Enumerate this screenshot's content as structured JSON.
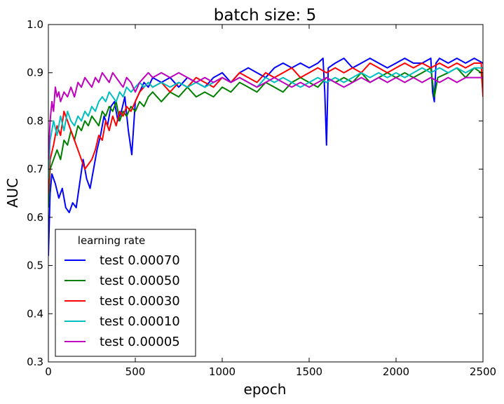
{
  "chart_data": {
    "type": "line",
    "title": "batch size: 5",
    "xlabel": "epoch",
    "ylabel": "AUC",
    "xlim": [
      0,
      2500
    ],
    "ylim": [
      0.3,
      1.0
    ],
    "xticks": [
      0,
      500,
      1000,
      1500,
      2000,
      2500
    ],
    "yticks": [
      0.3,
      0.4,
      0.5,
      0.6,
      0.7,
      0.8,
      0.9,
      1.0
    ],
    "xtick_labels": [
      "0",
      "500",
      "1000",
      "1500",
      "2000",
      "2500"
    ],
    "ytick_labels": [
      "0.3",
      "0.4",
      "0.5",
      "0.6",
      "0.7",
      "0.8",
      "0.9",
      "1.0"
    ],
    "grid": false,
    "legend": {
      "title": "learning rate",
      "position": "lower-left"
    },
    "series": [
      {
        "name": "test 0.00070",
        "color": "#0000ff",
        "x": [
          0,
          10,
          20,
          40,
          60,
          80,
          100,
          120,
          140,
          160,
          180,
          200,
          220,
          240,
          260,
          280,
          300,
          320,
          340,
          360,
          380,
          400,
          420,
          440,
          460,
          480,
          500,
          525,
          550,
          575,
          600,
          650,
          700,
          750,
          800,
          850,
          900,
          950,
          1000,
          1050,
          1100,
          1150,
          1200,
          1250,
          1300,
          1350,
          1400,
          1450,
          1500,
          1550,
          1580,
          1590,
          1600,
          1610,
          1650,
          1700,
          1750,
          1800,
          1850,
          1900,
          1950,
          2000,
          2050,
          2100,
          2150,
          2200,
          2210,
          2220,
          2230,
          2250,
          2300,
          2350,
          2400,
          2450,
          2500
        ],
        "y": [
          0.52,
          0.65,
          0.69,
          0.67,
          0.64,
          0.66,
          0.62,
          0.61,
          0.63,
          0.62,
          0.67,
          0.72,
          0.68,
          0.66,
          0.7,
          0.74,
          0.77,
          0.81,
          0.79,
          0.83,
          0.84,
          0.8,
          0.82,
          0.85,
          0.78,
          0.73,
          0.84,
          0.86,
          0.88,
          0.87,
          0.89,
          0.88,
          0.89,
          0.87,
          0.89,
          0.88,
          0.87,
          0.89,
          0.9,
          0.88,
          0.9,
          0.91,
          0.9,
          0.89,
          0.91,
          0.92,
          0.91,
          0.92,
          0.91,
          0.92,
          0.93,
          0.86,
          0.75,
          0.91,
          0.92,
          0.93,
          0.91,
          0.92,
          0.93,
          0.92,
          0.91,
          0.92,
          0.93,
          0.92,
          0.92,
          0.93,
          0.86,
          0.84,
          0.92,
          0.93,
          0.92,
          0.93,
          0.92,
          0.93,
          0.92
        ]
      },
      {
        "name": "test 0.00050",
        "color": "#008000",
        "x": [
          0,
          10,
          30,
          50,
          70,
          90,
          110,
          130,
          150,
          170,
          190,
          210,
          230,
          250,
          270,
          290,
          310,
          330,
          350,
          370,
          390,
          410,
          430,
          450,
          475,
          500,
          525,
          550,
          575,
          600,
          650,
          700,
          750,
          800,
          850,
          900,
          950,
          1000,
          1050,
          1100,
          1150,
          1200,
          1250,
          1300,
          1350,
          1400,
          1450,
          1500,
          1550,
          1600,
          1650,
          1700,
          1750,
          1800,
          1850,
          1900,
          1950,
          2000,
          2050,
          2100,
          2150,
          2200,
          2220,
          2240,
          2300,
          2350,
          2400,
          2450,
          2490,
          2500
        ],
        "y": [
          0.62,
          0.7,
          0.72,
          0.74,
          0.72,
          0.76,
          0.75,
          0.78,
          0.76,
          0.79,
          0.78,
          0.8,
          0.79,
          0.81,
          0.8,
          0.79,
          0.82,
          0.81,
          0.83,
          0.82,
          0.84,
          0.8,
          0.82,
          0.81,
          0.83,
          0.82,
          0.84,
          0.83,
          0.85,
          0.86,
          0.84,
          0.86,
          0.85,
          0.87,
          0.85,
          0.86,
          0.85,
          0.87,
          0.86,
          0.88,
          0.87,
          0.86,
          0.88,
          0.87,
          0.86,
          0.88,
          0.89,
          0.88,
          0.87,
          0.89,
          0.88,
          0.89,
          0.88,
          0.9,
          0.88,
          0.89,
          0.9,
          0.89,
          0.9,
          0.89,
          0.9,
          0.91,
          0.85,
          0.89,
          0.9,
          0.91,
          0.89,
          0.91,
          0.9,
          0.86
        ]
      },
      {
        "name": "test 0.00030",
        "color": "#ff0000",
        "x": [
          0,
          10,
          30,
          50,
          70,
          90,
          110,
          130,
          150,
          170,
          190,
          210,
          230,
          250,
          270,
          290,
          310,
          330,
          350,
          370,
          390,
          410,
          430,
          450,
          475,
          500,
          525,
          550,
          575,
          600,
          650,
          700,
          750,
          800,
          850,
          900,
          950,
          1000,
          1050,
          1100,
          1150,
          1200,
          1250,
          1300,
          1350,
          1400,
          1450,
          1500,
          1550,
          1600,
          1650,
          1700,
          1750,
          1800,
          1850,
          1900,
          1950,
          2000,
          2050,
          2100,
          2150,
          2200,
          2250,
          2300,
          2350,
          2400,
          2450,
          2490,
          2500
        ],
        "y": [
          0.65,
          0.72,
          0.75,
          0.79,
          0.77,
          0.82,
          0.8,
          0.78,
          0.76,
          0.74,
          0.72,
          0.7,
          0.71,
          0.72,
          0.74,
          0.77,
          0.76,
          0.8,
          0.78,
          0.81,
          0.79,
          0.82,
          0.81,
          0.83,
          0.82,
          0.84,
          0.86,
          0.87,
          0.88,
          0.87,
          0.88,
          0.86,
          0.88,
          0.87,
          0.89,
          0.88,
          0.87,
          0.89,
          0.88,
          0.9,
          0.89,
          0.88,
          0.9,
          0.89,
          0.9,
          0.91,
          0.89,
          0.9,
          0.91,
          0.9,
          0.91,
          0.9,
          0.91,
          0.9,
          0.92,
          0.91,
          0.9,
          0.91,
          0.92,
          0.91,
          0.92,
          0.91,
          0.92,
          0.91,
          0.92,
          0.91,
          0.92,
          0.92,
          0.85
        ]
      },
      {
        "name": "test 0.00010",
        "color": "#00bfbf",
        "x": [
          0,
          10,
          30,
          50,
          70,
          90,
          110,
          130,
          150,
          170,
          190,
          210,
          230,
          250,
          270,
          290,
          310,
          330,
          350,
          370,
          390,
          410,
          430,
          450,
          475,
          500,
          525,
          550,
          575,
          600,
          650,
          700,
          750,
          800,
          850,
          900,
          950,
          1000,
          1050,
          1100,
          1150,
          1200,
          1250,
          1300,
          1350,
          1400,
          1450,
          1500,
          1550,
          1600,
          1650,
          1700,
          1750,
          1800,
          1850,
          1900,
          1950,
          2000,
          2050,
          2100,
          2150,
          2200,
          2250,
          2300,
          2350,
          2400,
          2450,
          2500
        ],
        "y": [
          0.68,
          0.76,
          0.8,
          0.77,
          0.81,
          0.78,
          0.82,
          0.8,
          0.79,
          0.81,
          0.8,
          0.82,
          0.81,
          0.83,
          0.82,
          0.84,
          0.85,
          0.84,
          0.86,
          0.85,
          0.84,
          0.86,
          0.85,
          0.87,
          0.86,
          0.87,
          0.88,
          0.87,
          0.88,
          0.87,
          0.88,
          0.87,
          0.88,
          0.87,
          0.88,
          0.87,
          0.88,
          0.89,
          0.88,
          0.89,
          0.88,
          0.87,
          0.89,
          0.88,
          0.89,
          0.88,
          0.87,
          0.88,
          0.89,
          0.88,
          0.89,
          0.88,
          0.89,
          0.9,
          0.89,
          0.9,
          0.89,
          0.9,
          0.89,
          0.9,
          0.91,
          0.9,
          0.91,
          0.9,
          0.91,
          0.9,
          0.91,
          0.91
        ]
      },
      {
        "name": "test 0.00005",
        "color": "#bf00bf",
        "x": [
          0,
          10,
          20,
          30,
          40,
          50,
          60,
          70,
          90,
          110,
          130,
          150,
          170,
          190,
          210,
          230,
          250,
          270,
          290,
          310,
          330,
          350,
          370,
          390,
          410,
          430,
          450,
          475,
          500,
          525,
          550,
          575,
          600,
          650,
          700,
          750,
          800,
          850,
          900,
          950,
          1000,
          1050,
          1100,
          1150,
          1200,
          1250,
          1300,
          1350,
          1400,
          1450,
          1500,
          1550,
          1600,
          1650,
          1700,
          1750,
          1800,
          1850,
          1900,
          1950,
          2000,
          2050,
          2100,
          2150,
          2200,
          2250,
          2300,
          2350,
          2400,
          2450,
          2500
        ],
        "y": [
          0.72,
          0.8,
          0.84,
          0.82,
          0.87,
          0.85,
          0.86,
          0.84,
          0.86,
          0.85,
          0.87,
          0.85,
          0.88,
          0.87,
          0.89,
          0.88,
          0.87,
          0.89,
          0.88,
          0.9,
          0.89,
          0.88,
          0.9,
          0.89,
          0.88,
          0.87,
          0.89,
          0.88,
          0.86,
          0.88,
          0.89,
          0.9,
          0.89,
          0.9,
          0.89,
          0.9,
          0.89,
          0.88,
          0.89,
          0.88,
          0.89,
          0.88,
          0.89,
          0.88,
          0.87,
          0.88,
          0.89,
          0.88,
          0.87,
          0.88,
          0.87,
          0.88,
          0.89,
          0.88,
          0.87,
          0.88,
          0.89,
          0.88,
          0.89,
          0.88,
          0.89,
          0.88,
          0.89,
          0.88,
          0.89,
          0.88,
          0.89,
          0.88,
          0.89,
          0.89,
          0.89
        ]
      }
    ]
  }
}
